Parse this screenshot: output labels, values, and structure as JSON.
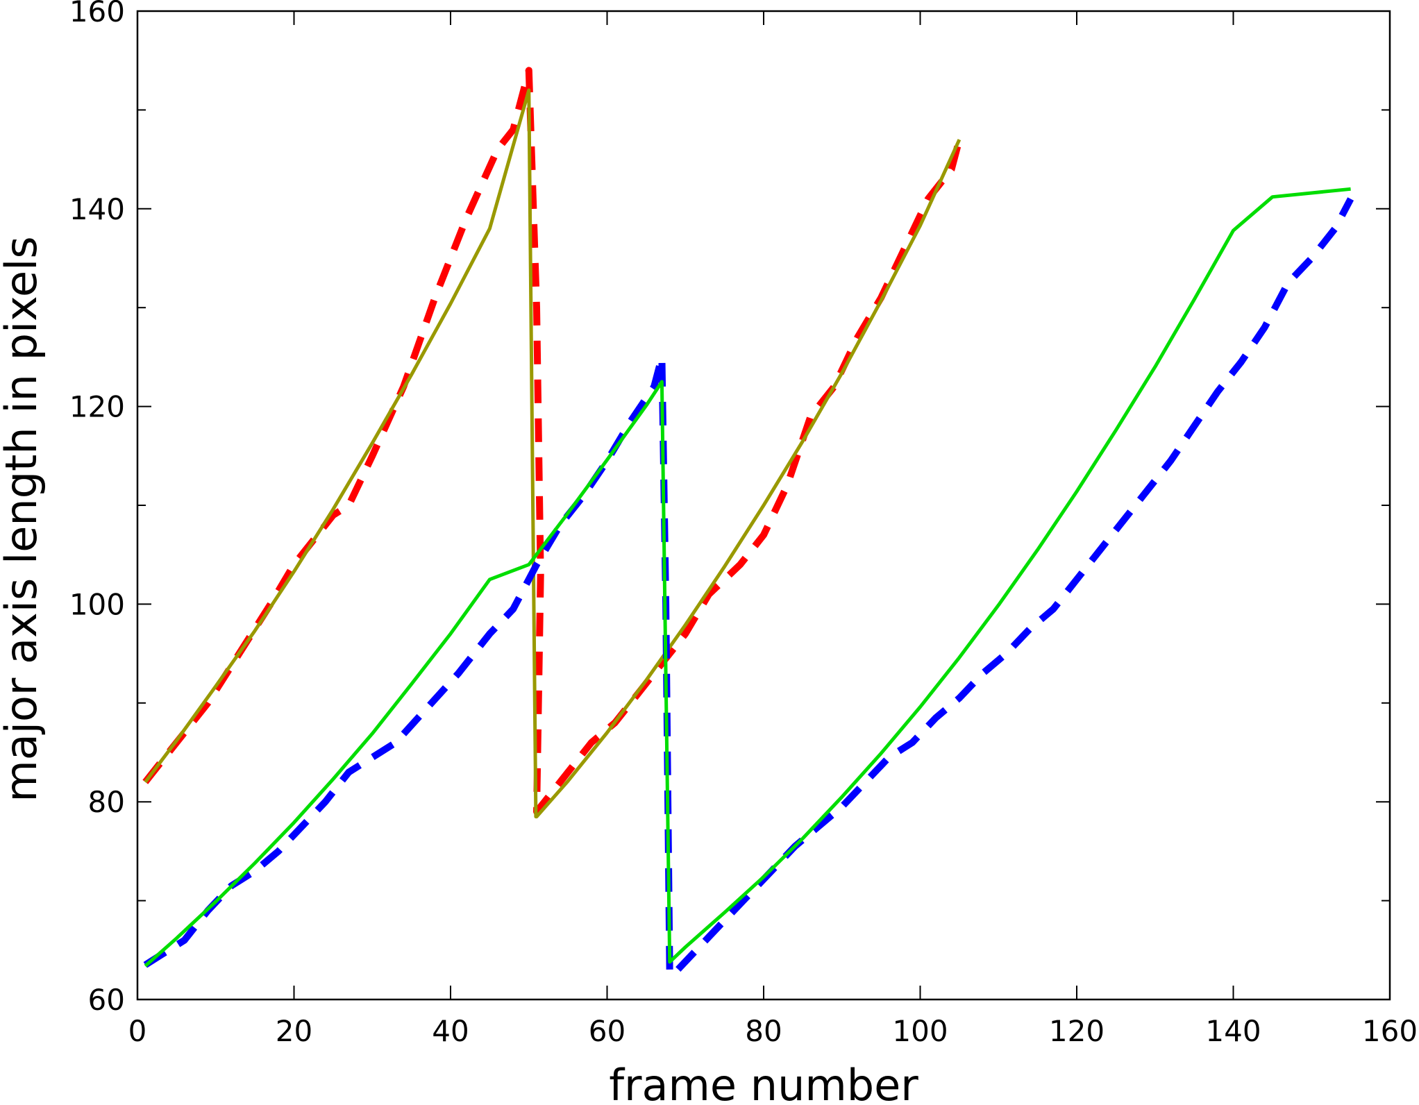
{
  "chart_data": {
    "type": "line",
    "title": "",
    "xlabel": "frame number",
    "ylabel": "major axis length in pixels",
    "xlim": [
      0,
      160
    ],
    "ylim": [
      60,
      160
    ],
    "xticks": [
      0,
      20,
      40,
      60,
      80,
      100,
      120,
      140,
      160
    ],
    "yticks": [
      60,
      80,
      100,
      120,
      140,
      160
    ],
    "x_tick_labels": [
      "0",
      "20",
      "40",
      "60",
      "80",
      "100",
      "120",
      "140",
      "160"
    ],
    "y_tick_labels": [
      "60",
      "80",
      "100",
      "120",
      "140",
      "160"
    ],
    "grid": false,
    "legend": "none",
    "series": [
      {
        "style": "dashed",
        "color": "#ff0000",
        "x": [
          1,
          3,
          6,
          9,
          13,
          17,
          20,
          25,
          27,
          30,
          34,
          38,
          42,
          46,
          48,
          50,
          51,
          51.5,
          51,
          52,
          55,
          58,
          61,
          64,
          66,
          70,
          73,
          77,
          80,
          83,
          86,
          89,
          92,
          95,
          98,
          101,
          104,
          105
        ],
        "y": [
          82,
          84,
          87,
          90,
          95,
          100,
          104,
          109,
          110,
          115,
          122,
          131,
          139,
          146,
          148,
          154,
          130,
          103,
          79,
          80,
          83,
          86,
          88,
          91,
          93,
          97,
          101,
          104,
          107,
          112,
          119,
          122,
          127,
          131,
          136,
          141,
          144,
          147
        ]
      },
      {
        "style": "solid",
        "color": "#999900",
        "x": [
          1,
          5,
          10,
          15,
          20,
          25,
          30,
          35,
          40,
          45,
          50,
          50.9,
          51,
          55,
          60,
          65,
          70,
          75,
          80,
          85,
          90,
          95,
          100,
          105
        ],
        "y": [
          82,
          86.2,
          91.7,
          97.3,
          103.3,
          109.6,
          116.3,
          123.2,
          130.4,
          138,
          152,
          78.5,
          78.5,
          82.1,
          87,
          92.3,
          97.9,
          103.8,
          110,
          116.5,
          123.4,
          130.7,
          138.3,
          147
        ]
      },
      {
        "style": "dashed",
        "color": "#0000ff",
        "x": [
          1,
          3,
          6,
          9,
          12,
          15,
          18,
          21,
          24,
          27,
          30,
          33,
          37,
          41,
          45,
          48,
          51,
          54,
          57,
          60,
          63,
          66,
          67,
          67.5,
          68,
          69,
          72,
          75,
          78,
          81,
          84,
          87,
          90,
          93,
          96,
          99,
          102,
          105,
          108,
          111,
          114,
          117,
          120,
          123,
          126,
          129,
          132,
          135,
          138,
          141,
          144,
          147,
          150,
          153,
          155
        ],
        "y": [
          63.5,
          64.5,
          66,
          69,
          71.5,
          73,
          75,
          77.5,
          80,
          83,
          84.5,
          86,
          89.5,
          93,
          97,
          99.5,
          104,
          108,
          111,
          114.5,
          118.5,
          122,
          125,
          100,
          62.5,
          63,
          65.5,
          68,
          70.5,
          73,
          75.5,
          77.5,
          79.5,
          82,
          84.5,
          86,
          88.5,
          90.5,
          93,
          95,
          97.5,
          99.5,
          102.5,
          105.5,
          108.5,
          111.5,
          114.5,
          118,
          121.5,
          124.5,
          128,
          132.5,
          135,
          138,
          141
        ]
      },
      {
        "style": "solid",
        "color": "#00dd00",
        "x": [
          1,
          5,
          10,
          15,
          20,
          25,
          30,
          35,
          40,
          45,
          50,
          55,
          60,
          65,
          67,
          68,
          70,
          75,
          80,
          85,
          90,
          95,
          100,
          105,
          110,
          115,
          120,
          125,
          130,
          135,
          140,
          145,
          150,
          155
        ],
        "y": [
          63.4,
          66.2,
          69.9,
          73.8,
          77.9,
          82.3,
          86.9,
          91.9,
          97,
          102.5,
          104,
          109.2,
          114.6,
          120.1,
          122.5,
          63.8,
          65.3,
          68.8,
          72.4,
          76.3,
          80.5,
          84.9,
          89.6,
          94.6,
          99.9,
          105.5,
          111.4,
          117.6,
          124,
          130.8,
          137.8,
          141.2,
          141.6,
          142
        ]
      }
    ]
  }
}
